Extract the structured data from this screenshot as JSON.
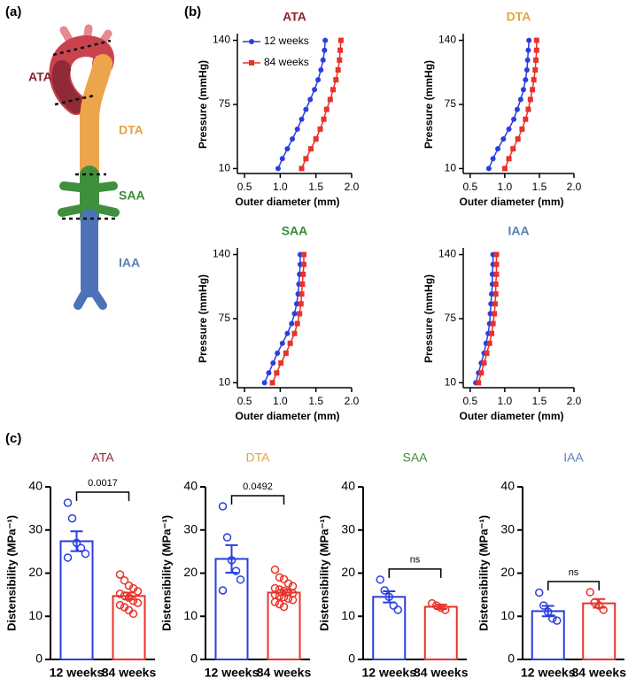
{
  "panel_labels": [
    "(a)",
    "(b)",
    "(c)"
  ],
  "illustration": {
    "labels": [
      "ATA",
      "DTA",
      "SAA",
      "IAA"
    ],
    "colors": [
      "#8b2635",
      "#e8a33d",
      "#3a8a3a",
      "#5b7fb5"
    ]
  },
  "chart_data": [
    {
      "type": "line",
      "title": "ATA",
      "title_color": "#8b2635",
      "xlabel": "Outer diameter (mm)",
      "ylabel": "Pressure (mmHg)",
      "y": [
        10,
        20,
        30,
        40,
        50,
        60,
        70,
        80,
        90,
        100,
        110,
        120,
        130,
        140
      ],
      "series": [
        {
          "name": "12 weeks",
          "color": "#2a3ee0",
          "marker": "circle",
          "values": [
            0.97,
            1.03,
            1.1,
            1.17,
            1.24,
            1.3,
            1.36,
            1.42,
            1.48,
            1.53,
            1.57,
            1.6,
            1.62,
            1.63
          ]
        },
        {
          "name": "84 weeks",
          "color": "#e8322a",
          "marker": "square",
          "values": [
            1.3,
            1.36,
            1.43,
            1.5,
            1.56,
            1.61,
            1.65,
            1.7,
            1.74,
            1.78,
            1.81,
            1.83,
            1.84,
            1.85
          ]
        }
      ],
      "xlim": [
        0.4,
        2.0
      ],
      "xticks": [
        0.5,
        {
          "value": 1,
          "label": "1.0"
        },
        1.5,
        {
          "value": 2,
          "label": "2.0"
        }
      ],
      "ylim": [
        5,
        145
      ],
      "yticks": [
        10,
        75,
        140
      ],
      "legend": "upper left"
    },
    {
      "type": "line",
      "title": "DTA",
      "title_color": "#e8a33d",
      "xlabel": "Outer diameter (mm)",
      "ylabel": "Pressure (mmHg)",
      "y": [
        10,
        20,
        30,
        40,
        50,
        60,
        70,
        80,
        90,
        100,
        110,
        120,
        130,
        140
      ],
      "series": [
        {
          "name": "12 weeks",
          "color": "#2a3ee0",
          "marker": "circle",
          "values": [
            0.77,
            0.83,
            0.9,
            0.98,
            1.06,
            1.13,
            1.18,
            1.23,
            1.27,
            1.3,
            1.32,
            1.33,
            1.34,
            1.35
          ]
        },
        {
          "name": "84 weeks",
          "color": "#e8322a",
          "marker": "square",
          "values": [
            1.0,
            1.06,
            1.12,
            1.19,
            1.25,
            1.3,
            1.34,
            1.37,
            1.4,
            1.42,
            1.44,
            1.45,
            1.46,
            1.46
          ]
        }
      ],
      "xlim": [
        0.4,
        2.0
      ],
      "xticks": [
        0.5,
        {
          "value": 1,
          "label": "1.0"
        },
        1.5,
        {
          "value": 2,
          "label": "2.0"
        }
      ],
      "ylim": [
        5,
        145
      ],
      "yticks": [
        10,
        75,
        140
      ]
    },
    {
      "type": "line",
      "title": "SAA",
      "title_color": "#3a8a3a",
      "xlabel": "Outer diameter (mm)",
      "ylabel": "Pressure (mmHg)",
      "y": [
        10,
        20,
        30,
        40,
        50,
        60,
        70,
        80,
        90,
        100,
        110,
        120,
        130,
        140
      ],
      "series": [
        {
          "name": "12 weeks",
          "color": "#2a3ee0",
          "marker": "circle",
          "values": [
            0.78,
            0.84,
            0.9,
            0.96,
            1.03,
            1.1,
            1.16,
            1.2,
            1.23,
            1.25,
            1.26,
            1.27,
            1.28,
            1.28
          ]
        },
        {
          "name": "84 weeks",
          "color": "#e8322a",
          "marker": "square",
          "values": [
            0.89,
            0.95,
            1.01,
            1.08,
            1.14,
            1.2,
            1.24,
            1.27,
            1.29,
            1.3,
            1.31,
            1.32,
            1.33,
            1.33
          ]
        }
      ],
      "xlim": [
        0.4,
        2.0
      ],
      "xticks": [
        0.5,
        {
          "value": 1,
          "label": "1.0"
        },
        1.5,
        {
          "value": 2,
          "label": "2.0"
        }
      ],
      "ylim": [
        5,
        145
      ],
      "yticks": [
        10,
        75,
        140
      ]
    },
    {
      "type": "line",
      "title": "IAA",
      "title_color": "#5b7fb5",
      "xlabel": "Outer diameter (mm)",
      "ylabel": "Pressure (mmHg)",
      "y": [
        10,
        20,
        30,
        40,
        50,
        60,
        70,
        80,
        90,
        100,
        110,
        120,
        130,
        140
      ],
      "series": [
        {
          "name": "12 weeks",
          "color": "#2a3ee0",
          "marker": "circle",
          "values": [
            0.58,
            0.62,
            0.66,
            0.7,
            0.73,
            0.76,
            0.78,
            0.79,
            0.8,
            0.81,
            0.82,
            0.82,
            0.83,
            0.83
          ]
        },
        {
          "name": "84 weeks",
          "color": "#e8322a",
          "marker": "square",
          "values": [
            0.62,
            0.66,
            0.7,
            0.74,
            0.78,
            0.81,
            0.83,
            0.85,
            0.86,
            0.87,
            0.87,
            0.88,
            0.88,
            0.88
          ]
        }
      ],
      "xlim": [
        0.4,
        2.0
      ],
      "xticks": [
        0.5,
        {
          "value": 1,
          "label": "1.0"
        },
        1.5,
        {
          "value": 2,
          "label": "2.0"
        }
      ],
      "ylim": [
        5,
        145
      ],
      "yticks": [
        10,
        75,
        140
      ]
    },
    {
      "type": "bar",
      "title": "ATA",
      "title_color": "#8b2635",
      "ylabel": "Distensibility (MPa⁻¹)",
      "categories": [
        "12 weeks",
        "84 weeks"
      ],
      "colors": [
        "#2a3ee0",
        "#e8322a"
      ],
      "values": [
        27.4,
        14.7
      ],
      "errors": [
        2.3,
        0.8
      ],
      "points": [
        [
          36.3,
          32.7,
          27,
          25.8,
          24.5,
          23.6
        ],
        [
          19.7,
          18.3,
          17.1,
          16.5,
          15.8,
          15.2,
          14.8,
          14.3,
          13.6,
          13.1,
          12.6,
          12.1,
          11.4,
          10.6
        ]
      ],
      "annotation": "0.0017",
      "ylim": [
        0,
        40
      ],
      "yticks": [
        0,
        10,
        20,
        30,
        40
      ]
    },
    {
      "type": "bar",
      "title": "DTA",
      "title_color": "#e8a33d",
      "ylabel": "Distensibility (MPa⁻¹)",
      "categories": [
        "12 weeks",
        "84 weeks"
      ],
      "colors": [
        "#2a3ee0",
        "#e8322a"
      ],
      "values": [
        23.3,
        15.5
      ],
      "errors": [
        3.2,
        0.6
      ],
      "points": [
        [
          35.5,
          28.3,
          23,
          20.5,
          18.5,
          16
        ],
        [
          20.8,
          19,
          18.6,
          17.6,
          17,
          16.5,
          16.2,
          15.9,
          15.6,
          15.3,
          15,
          14.7,
          14.4,
          14.1,
          13.8,
          13.3,
          12.8,
          12.2
        ]
      ],
      "annotation": "0.0492",
      "ylim": [
        0,
        40
      ],
      "yticks": [
        0,
        10,
        20,
        30,
        40
      ]
    },
    {
      "type": "bar",
      "title": "SAA",
      "title_color": "#3a8a3a",
      "ylabel": "Distensibility (MPa⁻¹)",
      "categories": [
        "12 weeks",
        "84 weeks"
      ],
      "colors": [
        "#2a3ee0",
        "#e8322a"
      ],
      "values": [
        14.5,
        12.2
      ],
      "errors": [
        1.3,
        0.5
      ],
      "points": [
        [
          18.5,
          16,
          14.5,
          12.5,
          11.5
        ],
        [
          13,
          12.5,
          12,
          11.5
        ]
      ],
      "annotation": "ns",
      "ylim": [
        0,
        40
      ],
      "yticks": [
        0,
        10,
        20,
        30,
        40
      ]
    },
    {
      "type": "bar",
      "title": "IAA",
      "title_color": "#5b7fb5",
      "ylabel": "Distensibility (MPa⁻¹)",
      "categories": [
        "12 weeks",
        "84 weeks"
      ],
      "colors": [
        "#2a3ee0",
        "#e8322a"
      ],
      "values": [
        11.2,
        13
      ],
      "errors": [
        1.2,
        1
      ],
      "points": [
        [
          15.5,
          12.5,
          11,
          9.5,
          9
        ],
        [
          15.6,
          13.2,
          12.5,
          11.5
        ]
      ],
      "annotation": "ns",
      "ylim": [
        0,
        40
      ],
      "yticks": [
        0,
        10,
        20,
        30,
        40
      ]
    }
  ]
}
